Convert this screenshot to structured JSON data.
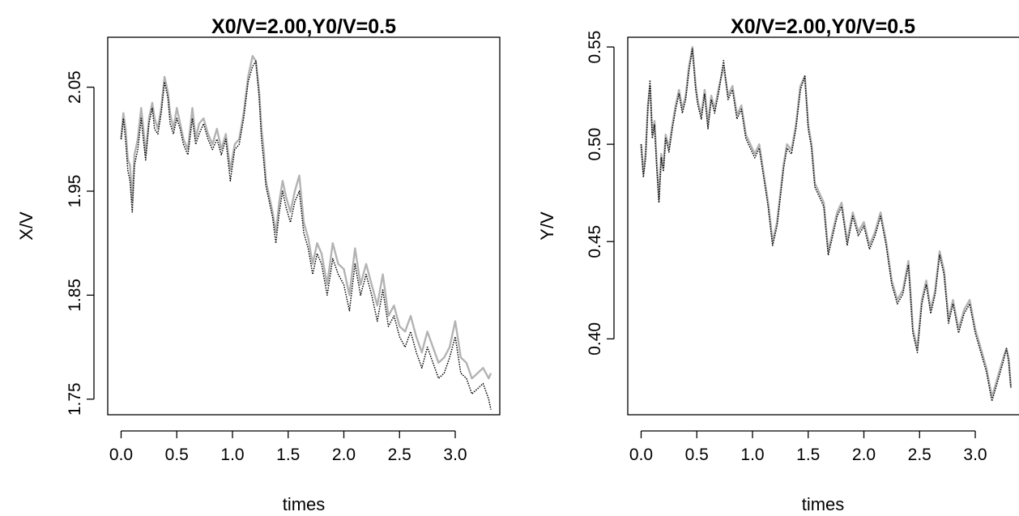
{
  "chart_data": [
    {
      "type": "line",
      "title": "X0/V=2.00,Y0/V=0.5",
      "xlabel": "times",
      "ylabel": "X/V",
      "xlim": [
        -0.12,
        3.4
      ],
      "ylim": [
        1.735,
        2.098
      ],
      "x_ticks": [
        0.0,
        0.5,
        1.0,
        1.5,
        2.0,
        2.5,
        3.0
      ],
      "x_tick_labels": [
        "0.0",
        "0.5",
        "1.0",
        "1.5",
        "2.0",
        "2.5",
        "3.0"
      ],
      "y_ticks": [
        1.75,
        1.85,
        1.95,
        2.05
      ],
      "y_tick_labels": [
        "1.75",
        "1.85",
        "1.95",
        "2.05"
      ],
      "grid": false,
      "series": [
        {
          "style": "solid",
          "color": "#b3b3b3",
          "x": [
            0.0,
            0.02,
            0.04,
            0.06,
            0.08,
            0.1,
            0.12,
            0.15,
            0.18,
            0.2,
            0.22,
            0.25,
            0.28,
            0.3,
            0.33,
            0.36,
            0.39,
            0.42,
            0.44,
            0.47,
            0.5,
            0.53,
            0.56,
            0.6,
            0.64,
            0.67,
            0.7,
            0.74,
            0.78,
            0.82,
            0.86,
            0.9,
            0.94,
            0.98,
            1.02,
            1.06,
            1.1,
            1.14,
            1.18,
            1.21,
            1.24,
            1.26,
            1.28,
            1.3,
            1.33,
            1.36,
            1.39,
            1.42,
            1.45,
            1.48,
            1.52,
            1.56,
            1.6,
            1.64,
            1.68,
            1.72,
            1.76,
            1.8,
            1.85,
            1.9,
            1.95,
            2.0,
            2.05,
            2.1,
            2.15,
            2.2,
            2.25,
            2.3,
            2.35,
            2.4,
            2.45,
            2.5,
            2.55,
            2.6,
            2.65,
            2.7,
            2.75,
            2.8,
            2.85,
            2.9,
            2.95,
            3.0,
            3.05,
            3.1,
            3.15,
            3.2,
            3.25,
            3.3,
            3.32
          ],
          "y": [
            2.0,
            2.025,
            2.01,
            1.98,
            1.975,
            1.94,
            1.985,
            2.0,
            2.03,
            2.01,
            1.985,
            2.02,
            2.035,
            2.02,
            2.01,
            2.03,
            2.06,
            2.045,
            2.025,
            2.01,
            2.03,
            2.015,
            2.0,
            1.99,
            2.03,
            2.0,
            2.015,
            2.02,
            2.005,
            1.995,
            2.01,
            1.99,
            2.005,
            1.97,
            1.995,
            2.0,
            2.025,
            2.06,
            2.08,
            2.075,
            2.045,
            2.01,
            1.99,
            1.96,
            1.945,
            1.93,
            1.91,
            1.94,
            1.96,
            1.945,
            1.93,
            1.95,
            1.965,
            1.92,
            1.905,
            1.88,
            1.9,
            1.89,
            1.86,
            1.9,
            1.88,
            1.875,
            1.85,
            1.895,
            1.86,
            1.88,
            1.86,
            1.84,
            1.87,
            1.83,
            1.84,
            1.82,
            1.815,
            1.83,
            1.81,
            1.795,
            1.815,
            1.8,
            1.785,
            1.79,
            1.8,
            1.825,
            1.79,
            1.785,
            1.77,
            1.775,
            1.78,
            1.77,
            1.775
          ]
        },
        {
          "style": "dotted",
          "color": "#000000",
          "x": [
            0.0,
            0.02,
            0.04,
            0.06,
            0.08,
            0.1,
            0.12,
            0.15,
            0.18,
            0.2,
            0.22,
            0.25,
            0.28,
            0.3,
            0.33,
            0.36,
            0.39,
            0.42,
            0.44,
            0.47,
            0.5,
            0.53,
            0.56,
            0.6,
            0.64,
            0.67,
            0.7,
            0.74,
            0.78,
            0.82,
            0.86,
            0.9,
            0.94,
            0.98,
            1.02,
            1.06,
            1.1,
            1.14,
            1.18,
            1.21,
            1.24,
            1.26,
            1.28,
            1.3,
            1.33,
            1.36,
            1.39,
            1.42,
            1.45,
            1.48,
            1.52,
            1.56,
            1.6,
            1.64,
            1.68,
            1.72,
            1.76,
            1.8,
            1.85,
            1.9,
            1.95,
            2.0,
            2.05,
            2.1,
            2.15,
            2.2,
            2.25,
            2.3,
            2.35,
            2.4,
            2.45,
            2.5,
            2.55,
            2.6,
            2.65,
            2.7,
            2.75,
            2.8,
            2.85,
            2.9,
            2.95,
            3.0,
            3.05,
            3.1,
            3.15,
            3.2,
            3.25,
            3.3,
            3.32
          ],
          "y": [
            2.0,
            2.02,
            2.0,
            1.97,
            1.96,
            1.93,
            1.975,
            1.99,
            2.02,
            2.0,
            1.98,
            2.015,
            2.03,
            2.01,
            2.005,
            2.025,
            2.055,
            2.04,
            2.015,
            2.005,
            2.02,
            2.01,
            1.995,
            1.985,
            2.02,
            1.995,
            2.005,
            2.015,
            2.0,
            1.99,
            2.0,
            1.985,
            2.0,
            1.96,
            1.99,
            1.995,
            2.02,
            2.055,
            2.07,
            2.075,
            2.04,
            2.0,
            1.98,
            1.955,
            1.94,
            1.925,
            1.9,
            1.93,
            1.95,
            1.935,
            1.92,
            1.94,
            1.95,
            1.91,
            1.895,
            1.87,
            1.89,
            1.88,
            1.85,
            1.885,
            1.87,
            1.86,
            1.835,
            1.88,
            1.85,
            1.87,
            1.85,
            1.825,
            1.855,
            1.82,
            1.83,
            1.81,
            1.8,
            1.815,
            1.795,
            1.78,
            1.8,
            1.785,
            1.77,
            1.775,
            1.79,
            1.81,
            1.775,
            1.77,
            1.755,
            1.76,
            1.765,
            1.75,
            1.74
          ]
        }
      ]
    },
    {
      "type": "line",
      "title": "X0/V=2.00,Y0/V=0.5",
      "xlabel": "times",
      "ylabel": "Y/V",
      "xlim": [
        -0.12,
        3.4
      ],
      "ylim": [
        0.361,
        0.555
      ],
      "x_ticks": [
        0.0,
        0.5,
        1.0,
        1.5,
        2.0,
        2.5,
        3.0
      ],
      "x_tick_labels": [
        "0.0",
        "0.5",
        "1.0",
        "1.5",
        "2.0",
        "2.5",
        "3.0"
      ],
      "y_ticks": [
        0.4,
        0.45,
        0.5,
        0.55
      ],
      "y_tick_labels": [
        "0.40",
        "0.45",
        "0.50",
        "0.55"
      ],
      "grid": false,
      "series": [
        {
          "style": "solid",
          "color": "#b3b3b3",
          "x": [
            0.0,
            0.02,
            0.04,
            0.06,
            0.08,
            0.1,
            0.12,
            0.14,
            0.16,
            0.18,
            0.2,
            0.22,
            0.25,
            0.28,
            0.31,
            0.34,
            0.37,
            0.4,
            0.43,
            0.46,
            0.49,
            0.51,
            0.54,
            0.57,
            0.6,
            0.63,
            0.66,
            0.7,
            0.74,
            0.78,
            0.82,
            0.86,
            0.9,
            0.94,
            0.98,
            1.02,
            1.06,
            1.1,
            1.14,
            1.18,
            1.22,
            1.25,
            1.28,
            1.31,
            1.35,
            1.39,
            1.43,
            1.47,
            1.5,
            1.53,
            1.56,
            1.6,
            1.64,
            1.68,
            1.72,
            1.76,
            1.8,
            1.85,
            1.9,
            1.95,
            2.0,
            2.05,
            2.1,
            2.15,
            2.2,
            2.25,
            2.3,
            2.35,
            2.4,
            2.44,
            2.48,
            2.52,
            2.56,
            2.6,
            2.64,
            2.68,
            2.72,
            2.76,
            2.8,
            2.85,
            2.9,
            2.95,
            3.0,
            3.05,
            3.1,
            3.15,
            3.2,
            3.25,
            3.28,
            3.3,
            3.32
          ],
          "y": [
            0.5,
            0.485,
            0.495,
            0.52,
            0.53,
            0.505,
            0.512,
            0.49,
            0.472,
            0.495,
            0.488,
            0.505,
            0.498,
            0.51,
            0.52,
            0.528,
            0.518,
            0.525,
            0.54,
            0.55,
            0.53,
            0.522,
            0.515,
            0.528,
            0.51,
            0.525,
            0.518,
            0.53,
            0.54,
            0.525,
            0.53,
            0.515,
            0.52,
            0.505,
            0.5,
            0.495,
            0.5,
            0.485,
            0.47,
            0.45,
            0.46,
            0.475,
            0.49,
            0.5,
            0.497,
            0.51,
            0.53,
            0.535,
            0.51,
            0.5,
            0.48,
            0.475,
            0.47,
            0.445,
            0.455,
            0.465,
            0.47,
            0.45,
            0.465,
            0.455,
            0.46,
            0.448,
            0.455,
            0.465,
            0.45,
            0.43,
            0.42,
            0.425,
            0.44,
            0.405,
            0.395,
            0.42,
            0.43,
            0.415,
            0.425,
            0.445,
            0.435,
            0.41,
            0.42,
            0.405,
            0.415,
            0.42,
            0.405,
            0.395,
            0.385,
            0.37,
            0.38,
            0.39,
            0.395,
            0.39,
            0.375
          ]
        },
        {
          "style": "dotted",
          "color": "#000000",
          "x": [
            0.0,
            0.02,
            0.04,
            0.06,
            0.08,
            0.1,
            0.12,
            0.14,
            0.16,
            0.18,
            0.2,
            0.22,
            0.25,
            0.28,
            0.31,
            0.34,
            0.37,
            0.4,
            0.43,
            0.46,
            0.49,
            0.51,
            0.54,
            0.57,
            0.6,
            0.63,
            0.66,
            0.7,
            0.74,
            0.78,
            0.82,
            0.86,
            0.9,
            0.94,
            0.98,
            1.02,
            1.06,
            1.1,
            1.14,
            1.18,
            1.22,
            1.25,
            1.28,
            1.31,
            1.35,
            1.39,
            1.43,
            1.47,
            1.5,
            1.53,
            1.56,
            1.6,
            1.64,
            1.68,
            1.72,
            1.76,
            1.8,
            1.85,
            1.9,
            1.95,
            2.0,
            2.05,
            2.1,
            2.15,
            2.2,
            2.25,
            2.3,
            2.35,
            2.4,
            2.44,
            2.48,
            2.52,
            2.56,
            2.6,
            2.64,
            2.68,
            2.72,
            2.76,
            2.8,
            2.85,
            2.9,
            2.95,
            3.0,
            3.05,
            3.1,
            3.15,
            3.2,
            3.25,
            3.28,
            3.3,
            3.32
          ],
          "y": [
            0.5,
            0.483,
            0.493,
            0.518,
            0.533,
            0.503,
            0.51,
            0.488,
            0.47,
            0.493,
            0.486,
            0.503,
            0.496,
            0.508,
            0.518,
            0.526,
            0.516,
            0.523,
            0.538,
            0.549,
            0.528,
            0.52,
            0.513,
            0.526,
            0.508,
            0.523,
            0.516,
            0.528,
            0.543,
            0.523,
            0.528,
            0.513,
            0.518,
            0.503,
            0.498,
            0.493,
            0.498,
            0.483,
            0.468,
            0.448,
            0.458,
            0.473,
            0.488,
            0.498,
            0.495,
            0.508,
            0.528,
            0.535,
            0.508,
            0.498,
            0.478,
            0.473,
            0.468,
            0.443,
            0.453,
            0.463,
            0.468,
            0.448,
            0.463,
            0.453,
            0.458,
            0.446,
            0.453,
            0.463,
            0.448,
            0.428,
            0.418,
            0.423,
            0.438,
            0.403,
            0.393,
            0.418,
            0.428,
            0.413,
            0.423,
            0.443,
            0.433,
            0.408,
            0.418,
            0.403,
            0.413,
            0.418,
            0.403,
            0.393,
            0.383,
            0.368,
            0.378,
            0.388,
            0.395,
            0.388,
            0.375
          ]
        }
      ]
    }
  ]
}
